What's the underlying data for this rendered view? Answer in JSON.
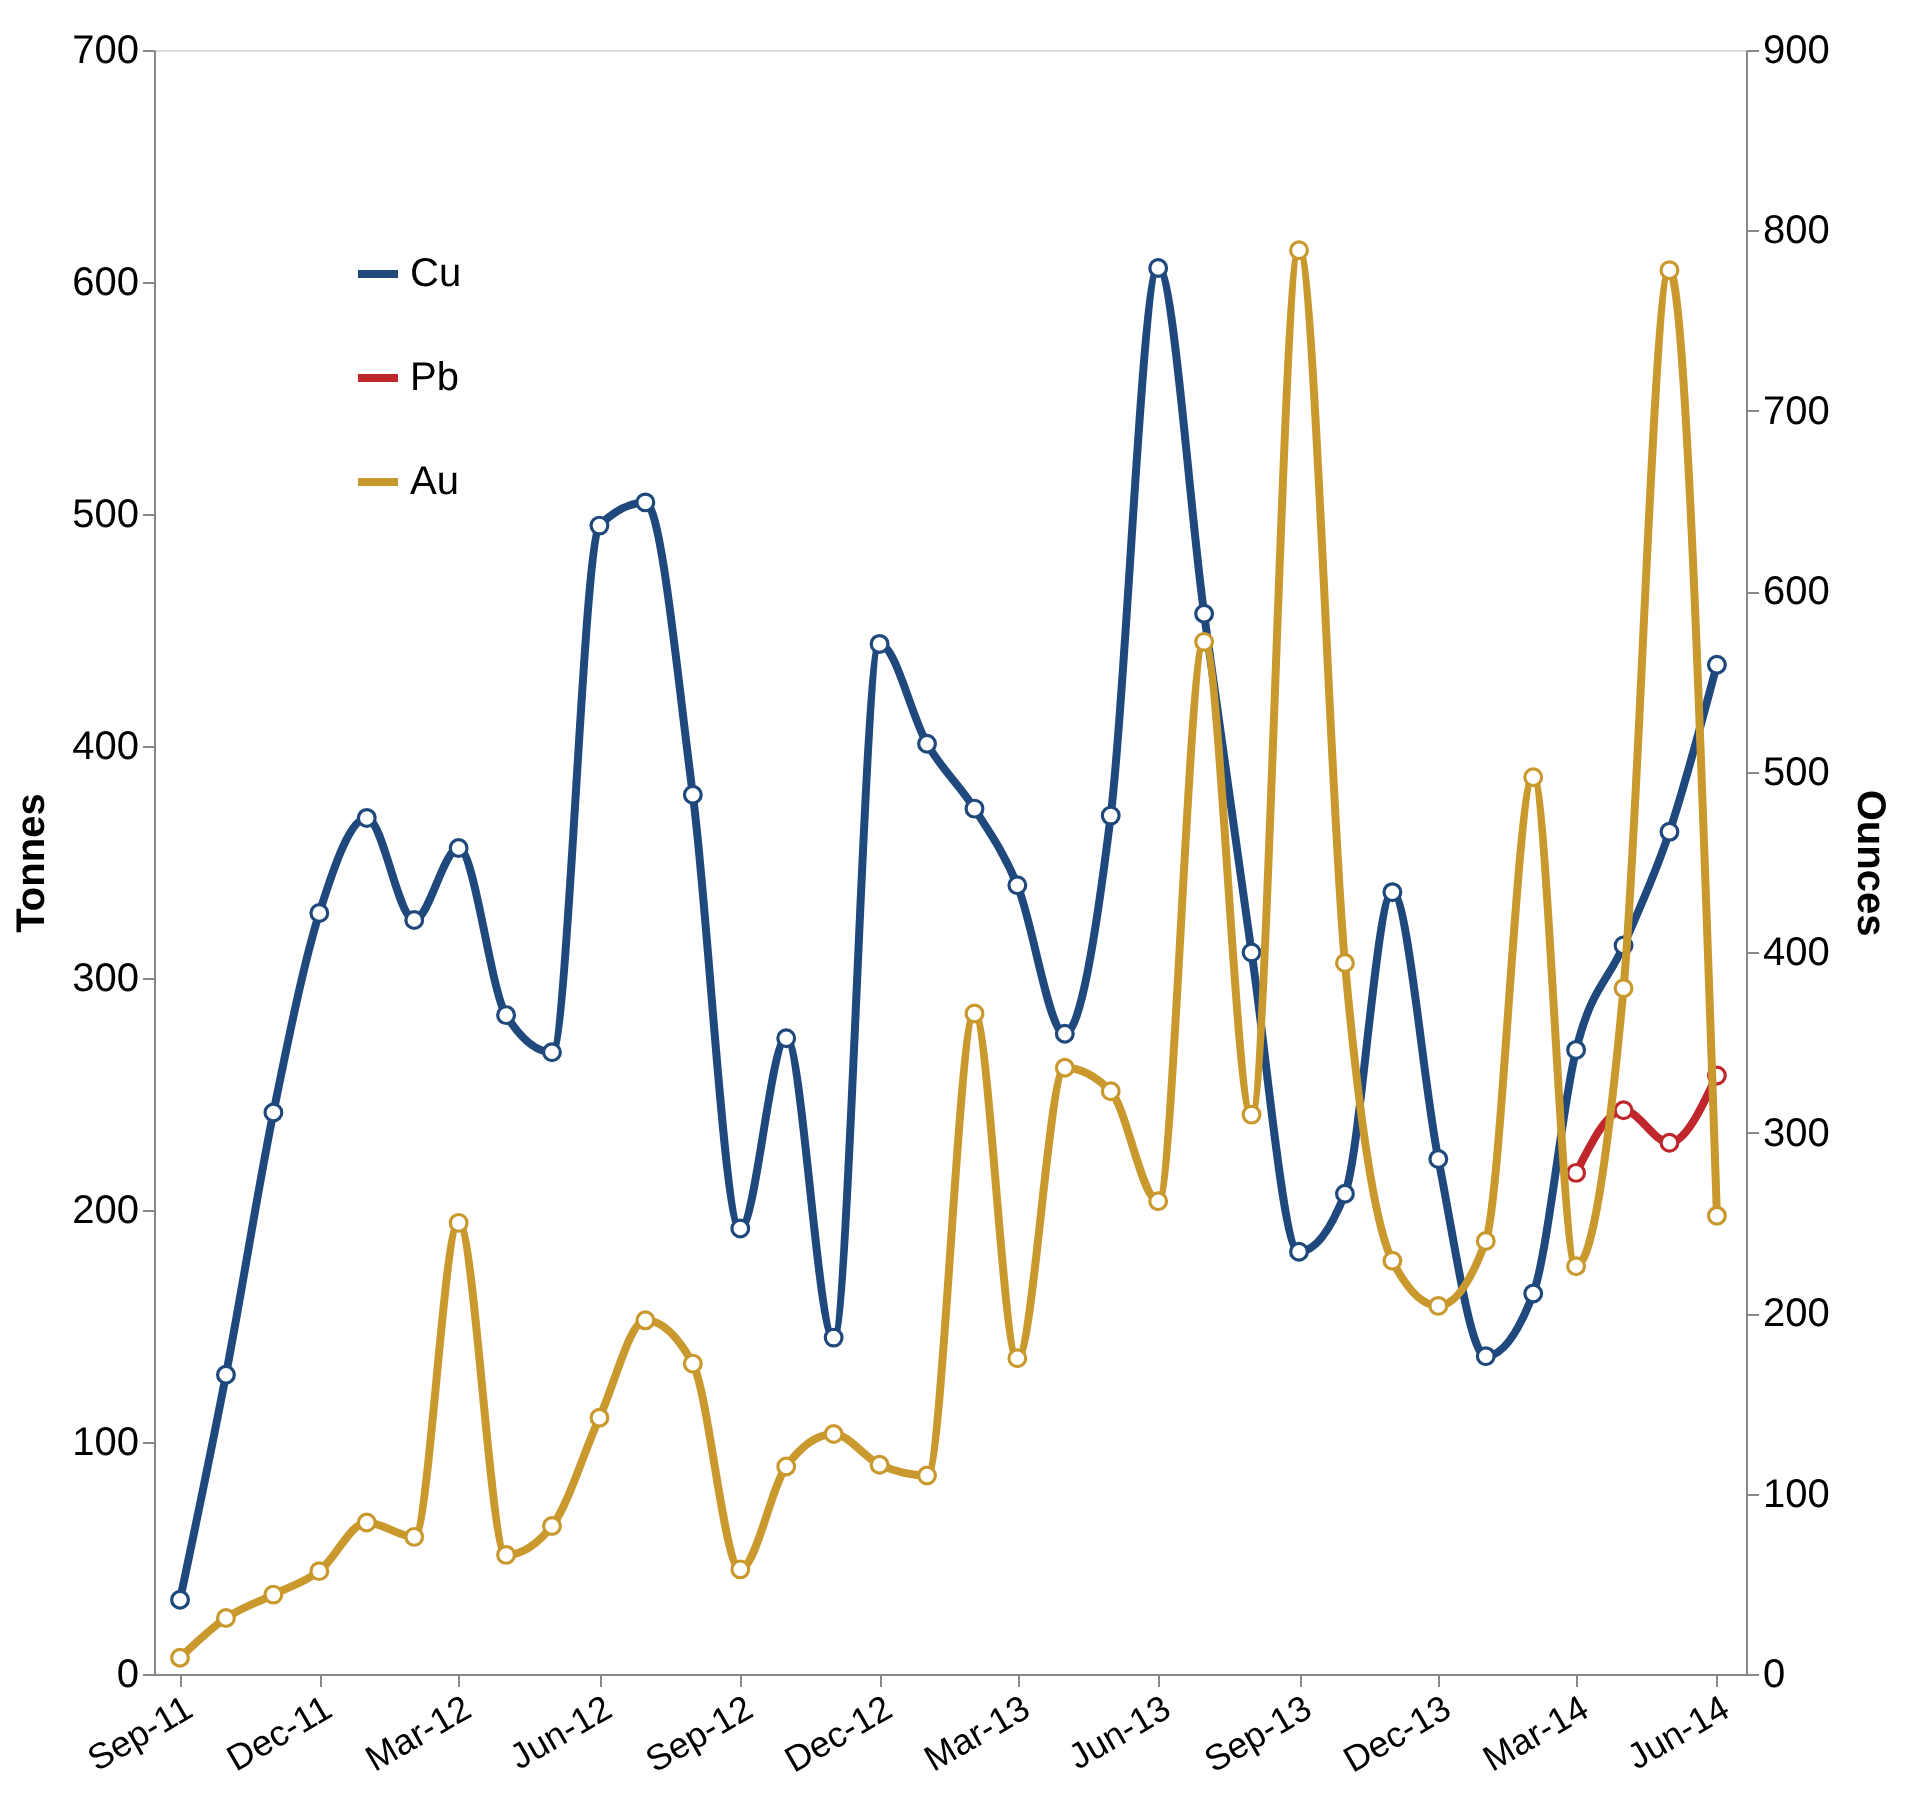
{
  "chart_data": {
    "type": "line",
    "ylabel": "Tonnes",
    "y2label": "Ounces",
    "x": [
      "2011-09",
      "2011-10",
      "2011-11",
      "2011-12",
      "2012-01",
      "2012-02",
      "2012-03",
      "2012-04",
      "2012-05",
      "2012-06",
      "2012-07",
      "2012-08",
      "2012-09",
      "2012-10",
      "2012-11",
      "2012-12",
      "2013-01",
      "2013-02",
      "2013-03",
      "2013-04",
      "2013-05",
      "2013-06",
      "2013-07",
      "2013-08",
      "2013-09",
      "2013-10",
      "2013-11",
      "2013-12",
      "2014-01",
      "2014-02",
      "2014-03",
      "2014-04",
      "2014-05",
      "2014-06"
    ],
    "series": [
      {
        "name": "Cu",
        "color": "#1f497d",
        "values": [
          32,
          129,
          242,
          328,
          369,
          325,
          356,
          284,
          268,
          495,
          505,
          379,
          192,
          274,
          145,
          444,
          401,
          373,
          340,
          276,
          370,
          606,
          457,
          311,
          182,
          207,
          337,
          222,
          137,
          164,
          269,
          314,
          363,
          435
        ]
      },
      {
        "name": "Pb",
        "color": "#c0272d",
        "values": [
          null,
          null,
          null,
          null,
          null,
          null,
          null,
          null,
          null,
          null,
          null,
          null,
          null,
          null,
          null,
          null,
          null,
          null,
          null,
          null,
          null,
          null,
          null,
          null,
          null,
          null,
          null,
          null,
          null,
          null,
          216,
          243,
          229,
          258
        ]
      },
      {
        "name": "Au",
        "color": "#c9992e",
        "axis": "y2",
        "values": [
          9,
          31,
          44,
          57,
          84,
          76,
          250,
          66,
          82,
          142,
          196,
          172,
          58,
          115,
          133,
          116,
          110,
          366,
          175,
          336,
          323,
          262,
          572,
          310,
          789,
          394,
          229,
          204,
          240,
          497,
          226,
          380,
          778,
          254
        ]
      }
    ],
    "xlim": [
      "2011-08-15",
      "2014-06-20"
    ],
    "xticks": [
      {
        "value": "2011-09",
        "label": "Sep-11"
      },
      {
        "value": "2011-12",
        "label": "Dec-11"
      },
      {
        "value": "2012-03",
        "label": "Mar-12"
      },
      {
        "value": "2012-06",
        "label": "Jun-12"
      },
      {
        "value": "2012-09",
        "label": "Sep-12"
      },
      {
        "value": "2012-12",
        "label": "Dec-12"
      },
      {
        "value": "2013-03",
        "label": "Mar-13"
      },
      {
        "value": "2013-06",
        "label": "Jun-13"
      },
      {
        "value": "2013-09",
        "label": "Sep-13"
      },
      {
        "value": "2013-12",
        "label": "Dec-13"
      },
      {
        "value": "2014-03",
        "label": "Mar-14"
      },
      {
        "value": "2014-06",
        "label": "Jun-14"
      }
    ],
    "ylim": [
      0,
      700
    ],
    "yticks": [
      0,
      100,
      200,
      300,
      400,
      500,
      600,
      700
    ],
    "y2lim": [
      0,
      900
    ],
    "y2ticks": [
      0,
      100,
      200,
      300,
      400,
      500,
      600,
      700,
      800,
      900
    ],
    "grid": false,
    "legend": "top left",
    "marker": "circle",
    "line_style": "solid"
  }
}
